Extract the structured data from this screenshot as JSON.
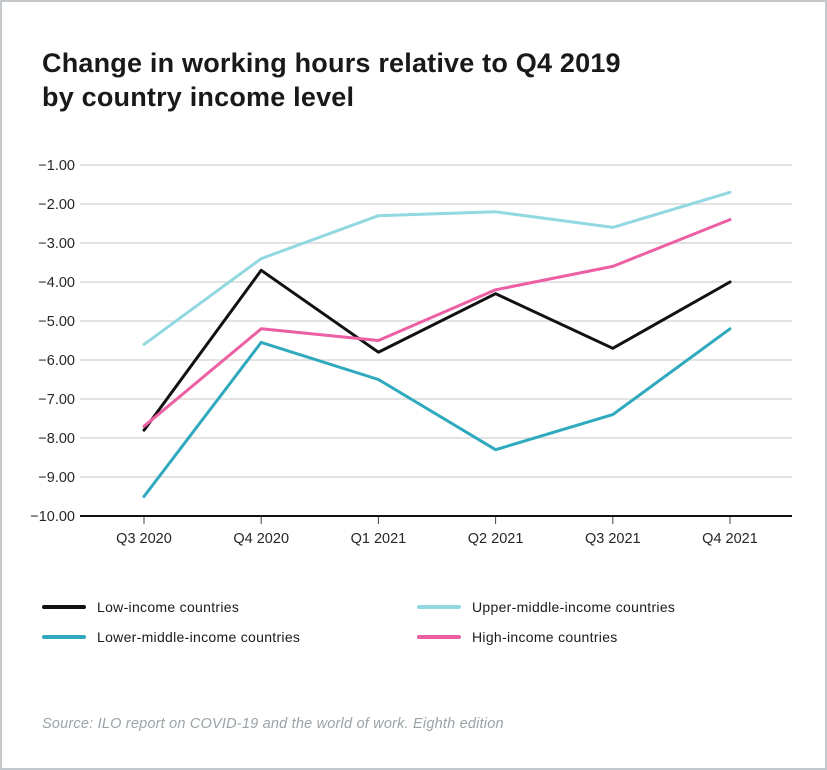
{
  "title": {
    "line1": "Change in working hours relative to Q4 2019",
    "line2": "by country income level"
  },
  "source": "Source: ILO report on COVID-19 and the world of work. Eighth edition",
  "colors": {
    "background": "#ffffff",
    "frame_border": "#c3c9cd",
    "grid": "#d2d2d2",
    "axis": "#111111",
    "tick_text": "#262626",
    "title_text": "#191919",
    "source_text": "#9aa3a8"
  },
  "chart_data": {
    "type": "line",
    "title": "Change in working hours relative to Q4 2019 by country income level",
    "categories": [
      "Q3 2020",
      "Q4 2020",
      "Q1 2021",
      "Q2 2021",
      "Q3 2021",
      "Q4 2021"
    ],
    "series": [
      {
        "name": "Low-income countries",
        "color": "#111111",
        "values": [
          -7.8,
          -3.7,
          -5.8,
          -4.3,
          -5.7,
          -4.0
        ]
      },
      {
        "name": "Lower-middle-income countries",
        "color": "#2fa9be",
        "values": [
          -9.5,
          -5.55,
          -6.5,
          -8.3,
          -7.4,
          -5.2
        ]
      },
      {
        "name": "Upper-middle-income countries",
        "color": "#92d8e1",
        "values": [
          -5.6,
          -3.4,
          -2.3,
          -2.2,
          -2.6,
          -1.7
        ]
      },
      {
        "name": "High-income countries",
        "color": "#ec5fa3",
        "values": [
          -7.7,
          -5.2,
          -5.5,
          -4.2,
          -3.6,
          -2.4
        ]
      }
    ],
    "xlabel": "",
    "ylabel": "",
    "ylim": [
      -10,
      -1
    ],
    "yticks": {
      "values": [
        -1,
        -2,
        -3,
        -4,
        -5,
        -6,
        -7,
        -8,
        -9,
        -10
      ],
      "labels": [
        "−1.00",
        "−2.00",
        "−3.00",
        "−4.00",
        "−5.00",
        "−6.00",
        "−7.00",
        "−8.00",
        "−9.00",
        "−10.00"
      ]
    },
    "grid": true,
    "legend_position": "bottom"
  },
  "legend": {
    "items": [
      {
        "label": "Low-income countries",
        "series": 0
      },
      {
        "label": "Upper-middle-income countries",
        "series": 2
      },
      {
        "label": "Lower-middle-income countries",
        "series": 1
      },
      {
        "label": "High-income countries",
        "series": 3
      }
    ]
  }
}
